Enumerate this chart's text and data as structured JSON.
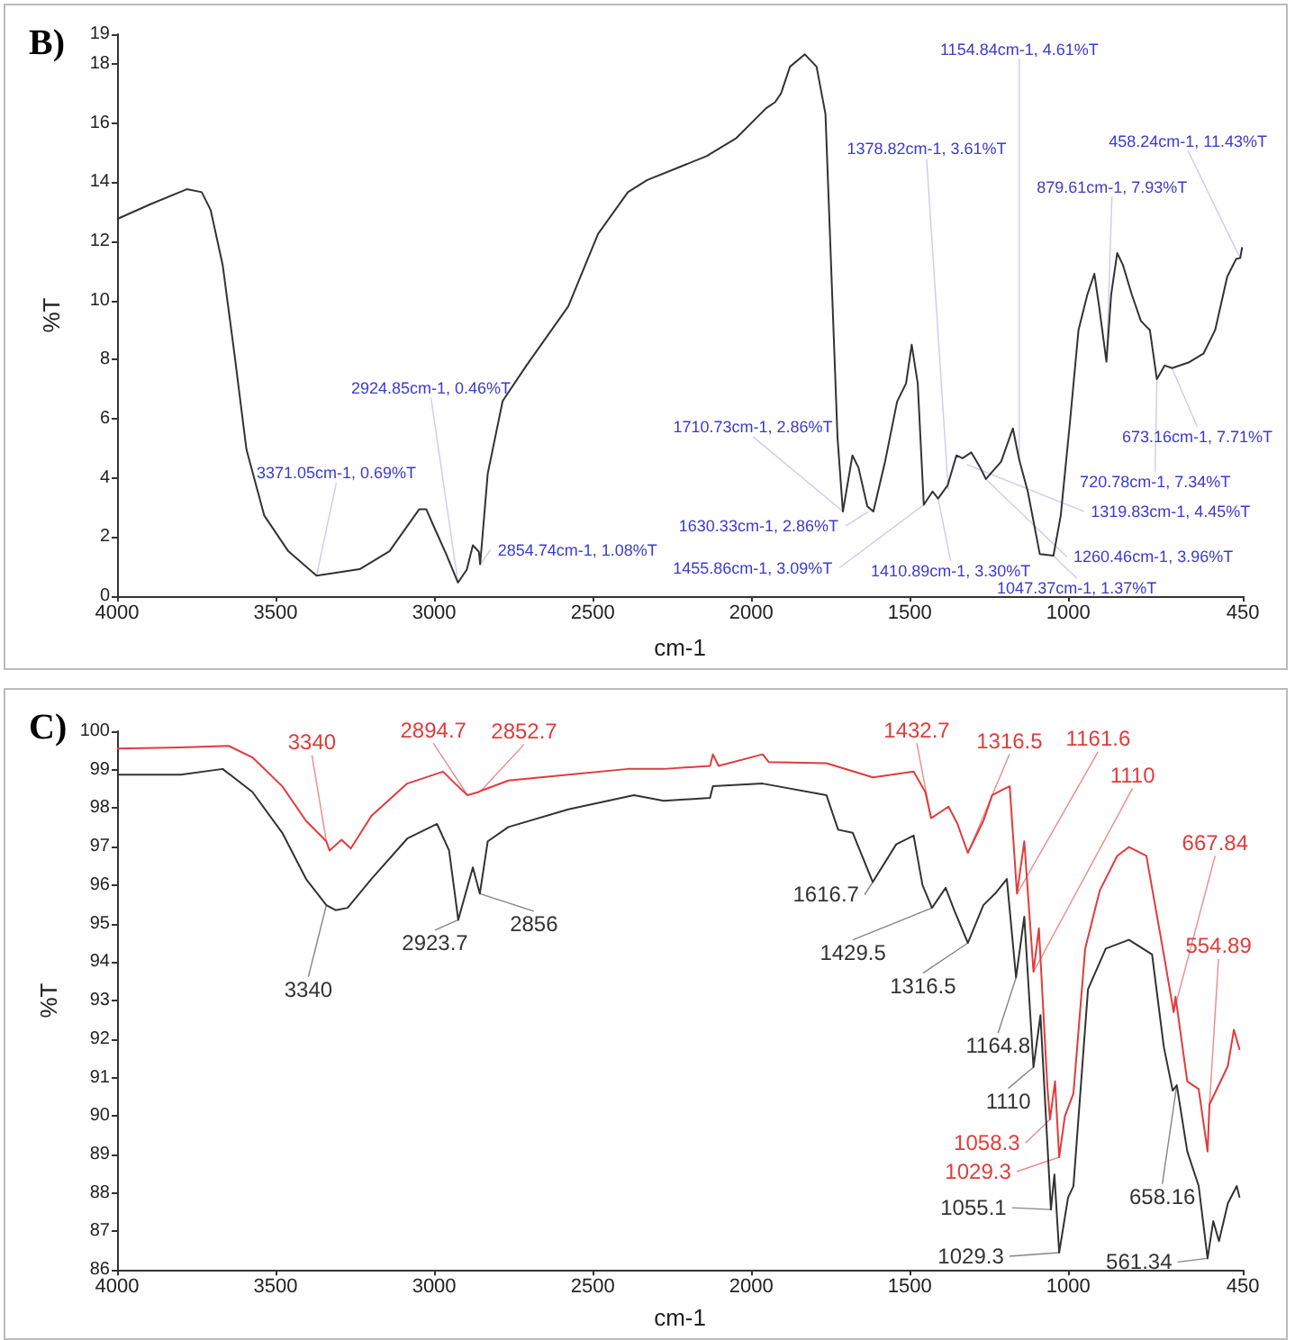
{
  "chart_data": [
    {
      "type": "line",
      "title": "B)",
      "xlabel": "cm-1",
      "ylabel": "%T",
      "marker": "none",
      "xlim": [
        4000,
        450
      ],
      "xticks": [
        4000,
        3500,
        3000,
        2500,
        2000,
        1500,
        1000,
        450
      ],
      "ylim": [
        0,
        19
      ],
      "yticks": [
        0,
        2,
        4,
        6,
        8,
        10,
        12,
        14,
        16,
        18,
        19
      ],
      "series": [
        {
          "color": "#333333",
          "x": [
            4000,
            3893,
            3780,
            3733,
            3705,
            3667,
            3630,
            3592,
            3536,
            3460,
            3371,
            3235,
            3141,
            3047,
            3025,
            3000,
            2962,
            2925,
            2897,
            2878,
            2859,
            2855,
            2831,
            2784,
            2709,
            2577,
            2483,
            2389,
            2328,
            2235,
            2141,
            2047,
            1953,
            1925,
            1906,
            1878,
            1831,
            1794,
            1766,
            1728,
            1711,
            1681,
            1662,
            1634,
            1615,
            1578,
            1540,
            1512,
            1494,
            1475,
            1456,
            1428,
            1411,
            1381,
            1353,
            1334,
            1306,
            1278,
            1260,
            1212,
            1175,
            1155,
            1128,
            1090,
            1047,
            1024,
            996,
            968,
            940,
            918,
            903,
            880,
            865,
            846,
            828,
            800,
            771,
            743,
            721,
            696,
            673,
            621,
            574,
            537,
            499,
            471,
            458,
            452
          ],
          "values": [
            12.75,
            13.26,
            13.76,
            13.66,
            13.06,
            11.2,
            8.2,
            4.96,
            2.73,
            1.52,
            0.69,
            0.91,
            1.52,
            2.94,
            2.94,
            2.33,
            1.42,
            0.46,
            0.9,
            1.72,
            1.5,
            1.08,
            4.15,
            6.6,
            7.8,
            9.8,
            12.25,
            13.66,
            14.07,
            14.47,
            14.88,
            15.49,
            16.5,
            16.7,
            17.0,
            17.9,
            18.32,
            17.9,
            16.3,
            5.36,
            2.86,
            4.76,
            4.35,
            3.04,
            2.86,
            4.55,
            6.58,
            7.19,
            8.5,
            7.19,
            3.09,
            3.54,
            3.3,
            3.74,
            4.76,
            4.66,
            4.86,
            4.35,
            3.96,
            4.55,
            5.67,
            4.61,
            3.54,
            1.42,
            1.37,
            2.73,
            5.77,
            9.0,
            10.2,
            10.9,
            9.8,
            7.93,
            10.2,
            11.6,
            11.2,
            10.2,
            9.3,
            9.0,
            7.34,
            7.8,
            7.71,
            7.9,
            8.2,
            9.0,
            10.8,
            11.4,
            11.43,
            11.8
          ]
        }
      ],
      "annotations": [
        {
          "text": "3371.05cm-1, 0.69%T",
          "x": 3371.05,
          "y": 0.69
        },
        {
          "text": "2924.85cm-1, 0.46%T",
          "x": 2924.85,
          "y": 0.46
        },
        {
          "text": "2854.74cm-1, 1.08%T",
          "x": 2854.74,
          "y": 1.08
        },
        {
          "text": "1710.73cm-1, 2.86%T",
          "x": 1710.73,
          "y": 2.86
        },
        {
          "text": "1630.33cm-1, 2.86%T",
          "x": 1630.33,
          "y": 2.86
        },
        {
          "text": "1455.86cm-1, 3.09%T",
          "x": 1455.86,
          "y": 3.09
        },
        {
          "text": "1410.89cm-1, 3.30%T",
          "x": 1410.89,
          "y": 3.3
        },
        {
          "text": "1378.82cm-1, 3.61%T",
          "x": 1378.82,
          "y": 3.61
        },
        {
          "text": "1319.83cm-1, 4.45%T",
          "x": 1319.83,
          "y": 4.45
        },
        {
          "text": "1260.46cm-1, 3.96%T",
          "x": 1260.46,
          "y": 3.96
        },
        {
          "text": "1154.84cm-1, 4.61%T",
          "x": 1154.84,
          "y": 4.61
        },
        {
          "text": "1047.37cm-1, 1.37%T",
          "x": 1047.37,
          "y": 1.37
        },
        {
          "text": "879.61cm-1, 7.93%T",
          "x": 879.61,
          "y": 7.93
        },
        {
          "text": "720.78cm-1, 7.34%T",
          "x": 720.78,
          "y": 7.34
        },
        {
          "text": "673.16cm-1, 7.71%T",
          "x": 673.16,
          "y": 7.71
        },
        {
          "text": "458.24cm-1, 11.43%T",
          "x": 458.24,
          "y": 11.43
        }
      ]
    },
    {
      "type": "line",
      "title": "C)",
      "xlabel": "cm-1",
      "ylabel": "%T",
      "marker": "none",
      "xlim": [
        4000,
        450
      ],
      "xticks": [
        4000,
        3500,
        3000,
        2500,
        2000,
        1500,
        1000,
        450
      ],
      "ylim": [
        86,
        100
      ],
      "yticks": [
        86,
        87,
        88,
        89,
        90,
        91,
        92,
        93,
        94,
        95,
        96,
        97,
        98,
        99,
        100
      ],
      "series": [
        {
          "color": "#e03c3c",
          "x": [
            4000,
            3799,
            3648,
            3573,
            3479,
            3404,
            3340,
            3330,
            3292,
            3263,
            3198,
            3085,
            2972,
            2934,
            2895,
            2860,
            2853,
            2766,
            2577,
            2389,
            2276,
            2130,
            2121,
            2103,
            1964,
            1945,
            1763,
            1616,
            1488,
            1451,
            1433,
            1378,
            1350,
            1317,
            1268,
            1240,
            1203,
            1185,
            1162,
            1139,
            1110,
            1093,
            1066,
            1058,
            1042,
            1029,
            1011,
            984,
            947,
            901,
            846,
            809,
            754,
            699,
            668,
            662,
            625,
            589,
            561,
            555,
            497,
            478,
            460
          ],
          "values": [
            99.55,
            99.58,
            99.62,
            99.32,
            98.57,
            97.67,
            97.14,
            96.9,
            97.18,
            96.95,
            97.8,
            98.64,
            98.95,
            98.64,
            98.34,
            98.42,
            98.45,
            98.72,
            98.87,
            99.02,
            99.02,
            99.1,
            99.4,
            99.1,
            99.4,
            99.2,
            99.17,
            98.8,
            98.95,
            98.42,
            97.74,
            98.04,
            97.6,
            96.84,
            97.67,
            98.34,
            98.5,
            98.57,
            95.78,
            97.14,
            93.75,
            94.88,
            90.74,
            89.91,
            90.9,
            88.93,
            89.99,
            90.59,
            94.35,
            95.86,
            96.76,
            96.99,
            96.76,
            94.2,
            92.7,
            93.1,
            90.9,
            90.7,
            89.08,
            90.3,
            91.3,
            92.24,
            91.72
          ]
        },
        {
          "color": "#333333",
          "x": [
            4000,
            3799,
            3667,
            3573,
            3479,
            3404,
            3340,
            3311,
            3273,
            3198,
            3085,
            2991,
            2953,
            2924,
            2878,
            2856,
            2831,
            2766,
            2577,
            2370,
            2276,
            2130,
            2121,
            1964,
            1763,
            1726,
            1680,
            1617,
            1543,
            1488,
            1460,
            1430,
            1387,
            1359,
            1317,
            1268,
            1231,
            1194,
            1165,
            1139,
            1110,
            1088,
            1055,
            1044,
            1029,
            1001,
            984,
            938,
            882,
            809,
            736,
            699,
            671,
            658,
            625,
            589,
            561,
            543,
            525,
            497,
            469,
            460
          ],
          "values": [
            98.87,
            98.87,
            99.02,
            98.42,
            97.36,
            96.16,
            95.48,
            95.35,
            95.41,
            96.16,
            97.21,
            97.59,
            96.9,
            95.1,
            96.46,
            95.78,
            97.14,
            97.51,
            97.97,
            98.34,
            98.19,
            98.27,
            98.57,
            98.64,
            98.34,
            97.44,
            97.36,
            96.08,
            97.06,
            97.29,
            96.0,
            95.41,
            95.93,
            95.33,
            94.5,
            95.48,
            95.78,
            96.16,
            93.6,
            95.18,
            91.27,
            92.62,
            87.57,
            88.48,
            86.45,
            87.88,
            88.18,
            93.3,
            94.35,
            94.58,
            94.2,
            91.8,
            90.66,
            90.8,
            89.08,
            88.18,
            86.3,
            87.27,
            86.75,
            87.73,
            88.18,
            87.88
          ]
        }
      ],
      "annotations": [
        {
          "text": "3340",
          "x": 3340,
          "y": 97.14
        },
        {
          "text": "2894.7",
          "x": 2894.7,
          "y": 98.34
        },
        {
          "text": "2852.7",
          "x": 2852.7,
          "y": 98.45
        },
        {
          "text": "3340",
          "x": 3340,
          "y": 95.48
        },
        {
          "text": "2923.7",
          "x": 2923.7,
          "y": 95.1
        },
        {
          "text": "2856",
          "x": 2856,
          "y": 95.78
        },
        {
          "text": "1432.7",
          "x": 1432.7,
          "y": 97.74
        },
        {
          "text": "1316.5",
          "x": 1316.5,
          "y": 96.84
        },
        {
          "text": "1161.6",
          "x": 1161.6,
          "y": 95.78
        },
        {
          "text": "1110",
          "x": 1110,
          "y": 91.27
        },
        {
          "text": "1616.7",
          "x": 1616.7,
          "y": 96.08
        },
        {
          "text": "1429.5",
          "x": 1429.5,
          "y": 95.41
        },
        {
          "text": "1316.5",
          "x": 1316.5,
          "y": 94.5
        },
        {
          "text": "1164.8",
          "x": 1164.8,
          "y": 93.6
        },
        {
          "text": "1110",
          "x": 1110,
          "y": 93.75
        },
        {
          "text": "1058.3",
          "x": 1058.3,
          "y": 89.91
        },
        {
          "text": "1029.3",
          "x": 1029.3,
          "y": 88.93
        },
        {
          "text": "1055.1",
          "x": 1055.1,
          "y": 87.57
        },
        {
          "text": "1029.3",
          "x": 1029.3,
          "y": 86.45
        },
        {
          "text": "667.84",
          "x": 667.84,
          "y": 92.7
        },
        {
          "text": "554.89",
          "x": 554.89,
          "y": 90.3
        },
        {
          "text": "658.16",
          "x": 658.16,
          "y": 90.8
        },
        {
          "text": "561.34",
          "x": 561.34,
          "y": 86.3
        }
      ]
    }
  ]
}
